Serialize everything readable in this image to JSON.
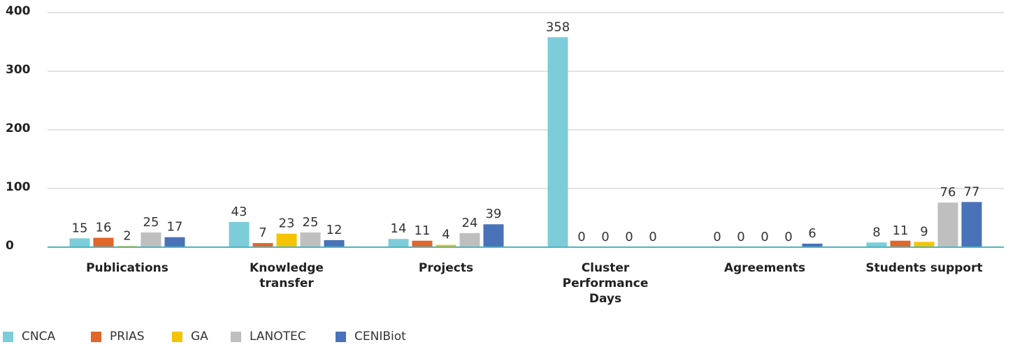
{
  "chart_data": {
    "type": "bar",
    "categories": [
      "Publications",
      "Knowledge transfer",
      "Projects",
      "Cluster Performance Days",
      "Agreements",
      "Students support"
    ],
    "series": [
      {
        "name": "CNCA",
        "color": "#7ccdd9",
        "values": [
          15,
          43,
          14,
          358,
          0,
          8
        ]
      },
      {
        "name": "PRIAS",
        "color": "#e0662a",
        "values": [
          16,
          7,
          11,
          0,
          0,
          11
        ]
      },
      {
        "name": "GA",
        "color": "#f5c400",
        "values": [
          2,
          23,
          4,
          0,
          0,
          9
        ]
      },
      {
        "name": "LANOTEC",
        "color": "#bfbfbf",
        "values": [
          25,
          25,
          24,
          0,
          0,
          76
        ]
      },
      {
        "name": "CENIBiot",
        "color": "#4a72b8",
        "values": [
          17,
          12,
          39,
          0,
          6,
          77
        ]
      }
    ],
    "ylim": [
      0,
      400
    ],
    "yticks": [
      0,
      100,
      200,
      300,
      400
    ],
    "grid": true,
    "legend": "bottom-left"
  }
}
